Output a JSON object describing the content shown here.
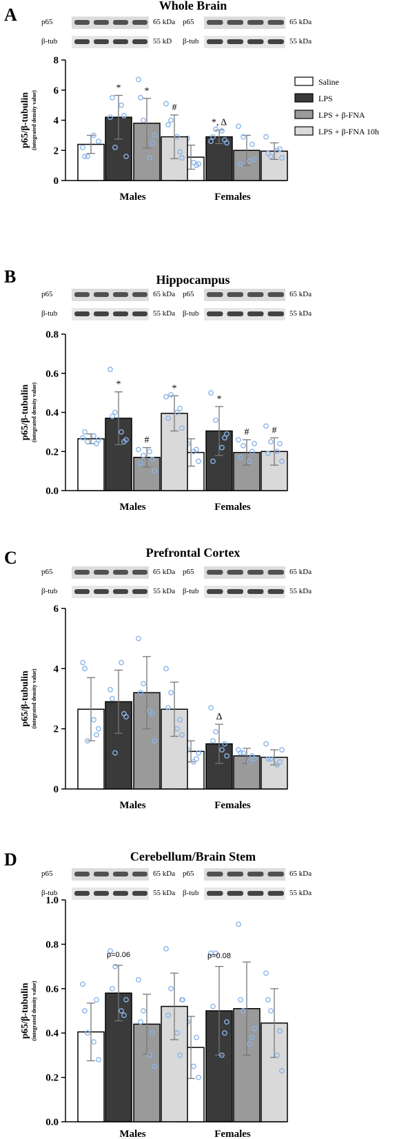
{
  "figure": {
    "legend": [
      {
        "label": "Saline",
        "color": "#ffffff"
      },
      {
        "label": "LPS",
        "color": "#3a3a3a"
      },
      {
        "label": "LPS + β-FNA",
        "color": "#9a9a9a"
      },
      {
        "label": "LPS + β-FNA 10h",
        "color": "#d9d9d9"
      }
    ],
    "point_color": "#8ab4e8",
    "error_bar_color": "#777777",
    "bar_edge_color": "#000000"
  },
  "chart_data": [
    {
      "panel": "A",
      "type": "bar",
      "title": "Whole Brain",
      "ylabel": "p65/β-tubulin",
      "ylabel_sub": "(integrated density value)",
      "categories": [
        "Males",
        "Females"
      ],
      "ylim": [
        0,
        8
      ],
      "yticks": [
        "0",
        "2",
        "4",
        "6",
        "8"
      ],
      "blot": {
        "left": {
          "rows": [
            {
              "label": "p65",
              "kda": "65 kDa"
            },
            {
              "label": "β-tub",
              "kda": "55 kD"
            }
          ]
        },
        "right": {
          "rows": [
            {
              "label": "p65",
              "kda": "65 kDa"
            },
            {
              "label": "β-tub",
              "kda": "55 kDa"
            }
          ]
        }
      },
      "series": [
        {
          "name": "Saline",
          "values": [
            2.4,
            1.55
          ],
          "errors": [
            0.6,
            0.8
          ],
          "points": [
            [
              2.2,
              1.6,
              3.0,
              2.6,
              1.6
            ],
            [
              2.4,
              2.8,
              1.2,
              1.1,
              1.9,
              1.0
            ]
          ],
          "marks": [
            "",
            ""
          ]
        },
        {
          "name": "LPS",
          "values": [
            4.2,
            2.9
          ],
          "errors": [
            1.45,
            0.45
          ],
          "points": [
            [
              4.2,
              2.2,
              5.0,
              1.6,
              5.5,
              4.3
            ],
            [
              2.6,
              3.4,
              3.3,
              2.5,
              2.9,
              2.7
            ]
          ],
          "marks": [
            "*",
            "*, Δ"
          ]
        },
        {
          "name": "LPS + β-FNA",
          "values": [
            3.8,
            2.0
          ],
          "errors": [
            1.65,
            1.0
          ],
          "points": [
            [
              6.7,
              4.0,
              1.5,
              3.0,
              5.5,
              2.5
            ],
            [
              3.6,
              2.9,
              1.3,
              1.4,
              1.1,
              2.4
            ]
          ],
          "marks": [
            "*",
            ""
          ]
        },
        {
          "name": "LPS + β-FNA 10h",
          "values": [
            2.9,
            1.95
          ],
          "errors": [
            1.45,
            0.55
          ],
          "points": [
            [
              5.1,
              4.0,
              2.9,
              1.5,
              3.7,
              1.9
            ],
            [
              2.9,
              1.6,
              2.0,
              1.5,
              1.8,
              2.1
            ]
          ],
          "marks": [
            "#",
            ""
          ]
        }
      ]
    },
    {
      "panel": "B",
      "type": "bar",
      "title": "Hippocampus",
      "ylabel": "p65/β-tubulin",
      "ylabel_sub": "(integrated density value)",
      "categories": [
        "Males",
        "Females"
      ],
      "ylim": [
        0,
        0.8
      ],
      "yticks": [
        "0.0",
        "0.2",
        "0.4",
        "0.6",
        "0.8"
      ],
      "blot": {
        "left": {
          "rows": [
            {
              "label": "p65",
              "kda": "65 kDa"
            },
            {
              "label": "β-tub",
              "kda": "55 kDa"
            }
          ]
        },
        "right": {
          "rows": [
            {
              "label": "p65",
              "kda": "65 kDa"
            },
            {
              "label": "β-tub",
              "kda": "55 kDa"
            }
          ]
        }
      },
      "series": [
        {
          "name": "Saline",
          "values": [
            0.265,
            0.195
          ],
          "errors": [
            0.025,
            0.07
          ],
          "points": [
            [
              0.27,
              0.25,
              0.28,
              0.26,
              0.3,
              0.24
            ],
            [
              0.29,
              0.24,
              0.2,
              0.15,
              0.12,
              0.21
            ]
          ],
          "marks": [
            "",
            ""
          ]
        },
        {
          "name": "LPS",
          "values": [
            0.37,
            0.305
          ],
          "errors": [
            0.135,
            0.125
          ],
          "points": [
            [
              0.62,
              0.4,
              0.3,
              0.26,
              0.38,
              0.25
            ],
            [
              0.5,
              0.36,
              0.22,
              0.29,
              0.15,
              0.27
            ]
          ],
          "marks": [
            "*",
            "*"
          ]
        },
        {
          "name": "LPS + β-FNA",
          "values": [
            0.17,
            0.195
          ],
          "errors": [
            0.05,
            0.065
          ],
          "points": [
            [
              0.21,
              0.18,
              0.2,
              0.1,
              0.14,
              0.16
            ],
            [
              0.26,
              0.23,
              0.15,
              0.24,
              0.17,
              0.2
            ]
          ],
          "marks": [
            "#",
            "#"
          ]
        },
        {
          "name": "LPS + β-FNA 10h",
          "values": [
            0.395,
            0.2
          ],
          "errors": [
            0.09,
            0.07
          ],
          "points": [
            [
              0.48,
              0.49,
              0.4,
              0.32,
              0.37,
              0.42
            ],
            [
              0.33,
              0.25,
              0.2,
              0.15,
              0.19,
              0.24
            ]
          ],
          "marks": [
            "*",
            "#"
          ]
        }
      ]
    },
    {
      "panel": "C",
      "type": "bar",
      "title": "Prefrontal Cortex",
      "ylabel": "p65/β-tubulin",
      "ylabel_sub": "(integrated density value)",
      "categories": [
        "Males",
        "Females"
      ],
      "ylim": [
        0,
        6
      ],
      "yticks": [
        "0",
        "2",
        "4",
        "6"
      ],
      "blot": {
        "left": {
          "rows": [
            {
              "label": "p65",
              "kda": "65 kDa"
            },
            {
              "label": "β-tub",
              "kda": "55 kDa"
            }
          ]
        },
        "right": {
          "rows": [
            {
              "label": "p65",
              "kda": "65 kDa"
            },
            {
              "label": "β-tub",
              "kda": "55 kDa"
            }
          ]
        }
      },
      "series": [
        {
          "name": "Saline",
          "values": [
            2.65,
            1.25
          ],
          "errors": [
            1.05,
            0.35
          ],
          "points": [
            [
              4.2,
              1.6,
              2.3,
              2.0,
              4.0,
              1.8
            ],
            [
              1.5,
              1.3,
              0.9,
              1.2,
              1.6,
              1.0
            ]
          ],
          "marks": [
            "",
            ""
          ]
        },
        {
          "name": "LPS",
          "values": [
            2.9,
            1.5
          ],
          "errors": [
            1.05,
            0.65
          ],
          "points": [
            [
              3.3,
              1.2,
              4.2,
              2.4,
              3.0,
              2.5
            ],
            [
              2.7,
              1.9,
              1.3,
              1.1,
              1.6,
              1.5
            ]
          ],
          "marks": [
            "",
            "Δ"
          ]
        },
        {
          "name": "LPS + β-FNA",
          "values": [
            3.2,
            1.1
          ],
          "errors": [
            1.2,
            0.25
          ],
          "points": [
            [
              5.0,
              3.5,
              2.6,
              1.6,
              3.2,
              2.5
            ],
            [
              1.3,
              1.2,
              0.9,
              1.0,
              1.2,
              1.1
            ]
          ],
          "marks": [
            "",
            ""
          ]
        },
        {
          "name": "LPS + β-FNA 10h",
          "values": [
            2.65,
            1.05
          ],
          "errors": [
            0.9,
            0.25
          ],
          "points": [
            [
              4.0,
              3.2,
              2.0,
              1.8,
              2.7,
              2.3
            ],
            [
              1.5,
              1.0,
              0.8,
              1.3,
              1.0,
              0.9
            ]
          ],
          "marks": [
            "",
            ""
          ]
        }
      ]
    },
    {
      "panel": "D",
      "type": "bar",
      "title": "Cerebellum/Brain Stem",
      "ylabel": "p65/β-tubulin",
      "ylabel_sub": "(integrated density value)",
      "categories": [
        "Males",
        "Females"
      ],
      "ylim": [
        0,
        1.0
      ],
      "yticks": [
        "0.0",
        "0.2",
        "0.4",
        "0.6",
        "0.8",
        "1.0"
      ],
      "annotations": [
        "p=0.06",
        "p=0.08"
      ],
      "blot": {
        "left": {
          "rows": [
            {
              "label": "p65",
              "kda": "65 kDa"
            },
            {
              "label": "β-tub",
              "kda": "55 kDa"
            }
          ]
        },
        "right": {
          "rows": [
            {
              "label": "p65",
              "kda": "65 kDa"
            },
            {
              "label": "β-tub",
              "kda": "55 kDa"
            }
          ]
        }
      },
      "series": [
        {
          "name": "Saline",
          "values": [
            0.405,
            0.335
          ],
          "errors": [
            0.13,
            0.14
          ],
          "points": [
            [
              0.62,
              0.4,
              0.36,
              0.28,
              0.5,
              0.55
            ],
            [
              0.55,
              0.45,
              0.25,
              0.2,
              0.33,
              0.38
            ]
          ],
          "marks": [
            "",
            ""
          ]
        },
        {
          "name": "LPS",
          "values": [
            0.58,
            0.5
          ],
          "errors": [
            0.125,
            0.2
          ],
          "points": [
            [
              0.77,
              0.7,
              0.5,
              0.55,
              0.6,
              0.48
            ],
            [
              0.76,
              0.76,
              0.3,
              0.45,
              0.52,
              0.4
            ]
          ],
          "marks": [
            "",
            ""
          ]
        },
        {
          "name": "LPS + β-FNA",
          "values": [
            0.44,
            0.51
          ],
          "errors": [
            0.135,
            0.21
          ],
          "points": [
            [
              0.64,
              0.5,
              0.3,
              0.25,
              0.45,
              0.4
            ],
            [
              0.89,
              0.5,
              0.35,
              0.42,
              0.55,
              0.38
            ]
          ],
          "marks": [
            "",
            ""
          ]
        },
        {
          "name": "LPS + β-FNA 10h",
          "values": [
            0.52,
            0.445
          ],
          "errors": [
            0.15,
            0.155
          ],
          "points": [
            [
              0.78,
              0.6,
              0.4,
              0.55,
              0.48,
              0.3
            ],
            [
              0.67,
              0.5,
              0.3,
              0.23,
              0.55,
              0.41
            ]
          ],
          "marks": [
            "",
            ""
          ]
        }
      ]
    }
  ]
}
